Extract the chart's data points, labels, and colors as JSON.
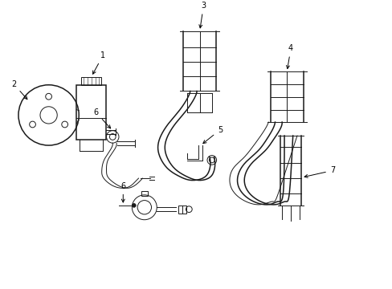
{
  "background_color": "#ffffff",
  "line_color": "#1a1a1a",
  "figsize": [
    4.89,
    3.6
  ],
  "dpi": 100,
  "xlim": [
    0,
    9.78
  ],
  "ylim": [
    0,
    7.2
  ]
}
